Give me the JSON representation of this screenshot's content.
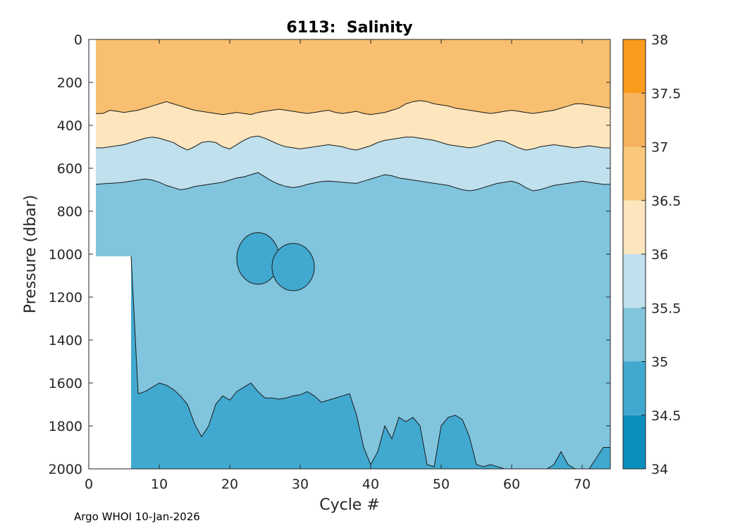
{
  "chart_data": {
    "type": "heatmap",
    "subtype": "filled-contour",
    "title": "6113:  Salinity",
    "xlabel": "Cycle #",
    "ylabel": "Pressure (dbar)",
    "xlim": [
      0,
      74
    ],
    "ylim": [
      2000,
      0
    ],
    "xticks": [
      0,
      10,
      20,
      30,
      40,
      50,
      60,
      70
    ],
    "yticks": [
      0,
      200,
      400,
      600,
      800,
      1000,
      1200,
      1400,
      1600,
      1800,
      2000
    ],
    "colorbar": {
      "levels": [
        34,
        34.5,
        35,
        35.5,
        36,
        36.5,
        37,
        37.5,
        38
      ],
      "labels": [
        "34",
        "34.5",
        "35",
        "35.5",
        "36",
        "36.5",
        "37",
        "37.5",
        "38"
      ],
      "colors": [
        "#0a8fbd",
        "#41a9cf",
        "#81c4de",
        "#bfe0ec",
        "#fde5bd",
        "#f9c87b",
        "#f6b25c",
        "#f99b1c"
      ]
    },
    "contours": [
      {
        "level": 36.5,
        "depths": [
          345,
          345,
          330,
          335,
          340,
          335,
          330,
          320,
          310,
          300,
          290,
          300,
          310,
          320,
          330,
          335,
          340,
          345,
          350,
          345,
          340,
          345,
          350,
          340,
          335,
          330,
          325,
          330,
          335,
          340,
          345,
          340,
          335,
          330,
          340,
          345,
          340,
          335,
          345,
          350,
          345,
          340,
          330,
          320,
          300,
          290,
          285,
          290,
          300,
          305,
          310,
          320,
          325,
          330,
          335,
          340,
          345,
          340,
          335,
          330,
          335,
          340,
          345,
          340,
          335,
          330,
          320,
          310,
          300,
          300,
          305,
          310,
          315,
          320
        ]
      },
      {
        "level": 36.0,
        "depths": [
          505,
          505,
          500,
          495,
          490,
          480,
          470,
          460,
          455,
          460,
          470,
          480,
          500,
          515,
          500,
          480,
          475,
          480,
          500,
          510,
          490,
          470,
          455,
          450,
          460,
          475,
          490,
          500,
          505,
          510,
          505,
          500,
          495,
          490,
          495,
          500,
          510,
          515,
          505,
          495,
          480,
          470,
          465,
          460,
          455,
          455,
          460,
          465,
          470,
          480,
          490,
          495,
          500,
          505,
          500,
          490,
          480,
          470,
          475,
          490,
          505,
          515,
          510,
          500,
          495,
          490,
          495,
          500,
          505,
          500,
          495,
          500,
          505,
          505
        ]
      },
      {
        "level": 35.5,
        "depths": [
          675,
          672,
          670,
          668,
          665,
          660,
          655,
          650,
          655,
          665,
          680,
          690,
          700,
          695,
          685,
          680,
          675,
          670,
          665,
          655,
          645,
          640,
          630,
          620,
          640,
          660,
          675,
          685,
          690,
          685,
          675,
          668,
          662,
          660,
          662,
          665,
          668,
          670,
          660,
          650,
          640,
          630,
          635,
          645,
          650,
          655,
          660,
          665,
          670,
          675,
          680,
          690,
          700,
          705,
          700,
          690,
          680,
          670,
          665,
          660,
          670,
          690,
          705,
          700,
          690,
          680,
          675,
          670,
          665,
          660,
          665,
          670,
          675,
          675
        ]
      },
      {
        "level": 35.0,
        "depths": [
          1010,
          1010,
          1010,
          1010,
          1010,
          1010,
          1650,
          1640,
          1620,
          1600,
          1610,
          1630,
          1660,
          1700,
          1790,
          1850,
          1800,
          1700,
          1660,
          1680,
          1640,
          1620,
          1600,
          1640,
          1670,
          1670,
          1675,
          1670,
          1660,
          1655,
          1640,
          1660,
          1690,
          1680,
          1670,
          1660,
          1650,
          1750,
          1900,
          1980,
          1920,
          1800,
          1860,
          1760,
          1780,
          1760,
          1800,
          1980,
          1990,
          1800,
          1760,
          1750,
          1770,
          1850,
          1980,
          1990,
          1980,
          1990,
          2000,
          2000,
          2000,
          2000,
          2000,
          2000,
          2000,
          1980,
          1920,
          1980,
          2000,
          2000,
          2000,
          1950,
          1900,
          1900
        ]
      }
    ],
    "patches": [
      {
        "level": 35.0,
        "center": [
          24,
          1020
        ],
        "extent": [
          3,
          120
        ]
      },
      {
        "level": 35.0,
        "center": [
          29,
          1060
        ],
        "extent": [
          3,
          110
        ]
      }
    ]
  },
  "footer": {
    "text": "Argo WHOI 10-Jan-2026"
  }
}
